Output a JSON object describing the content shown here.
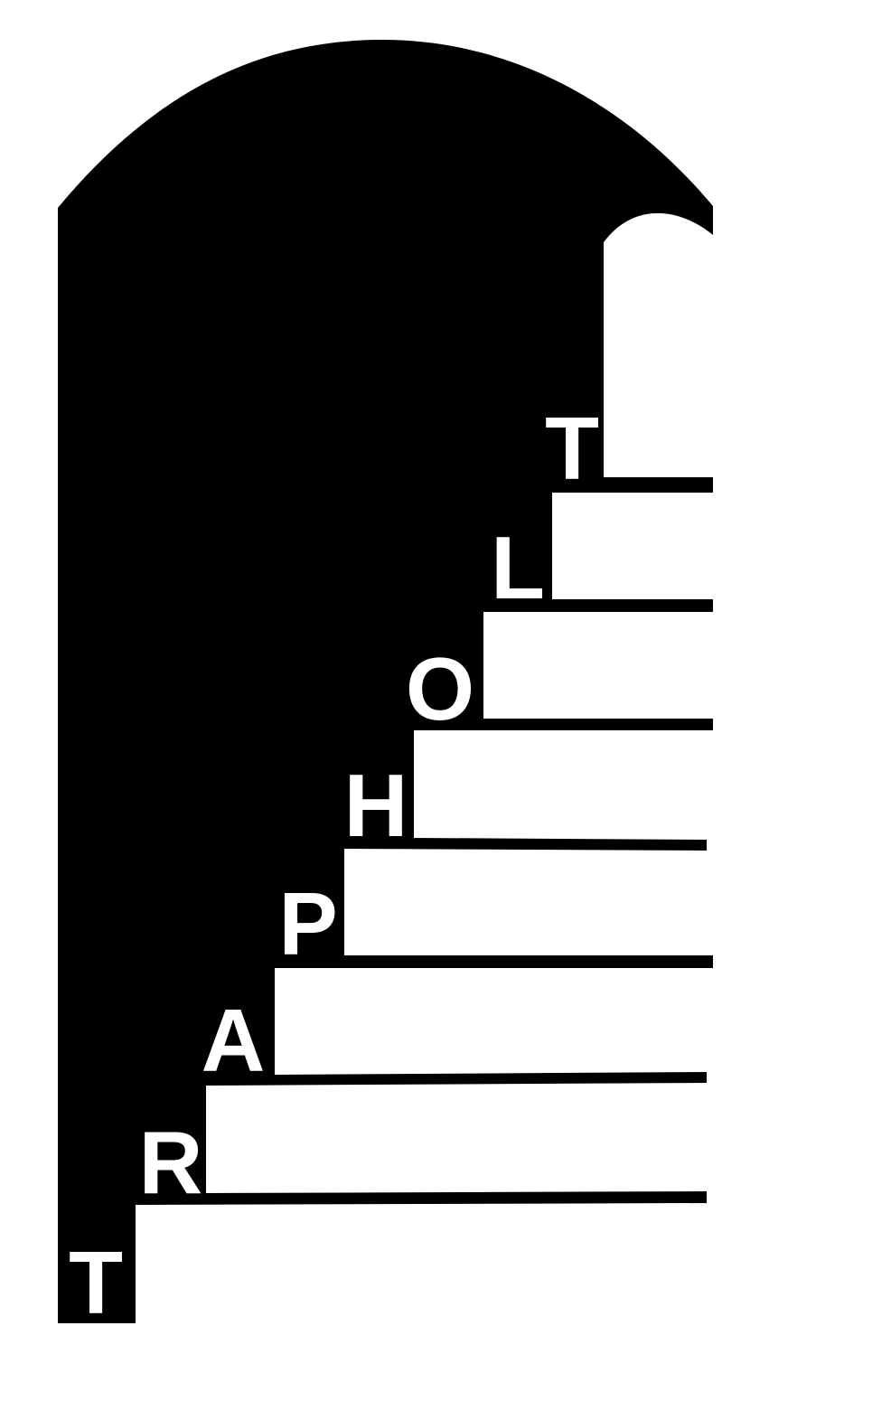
{
  "logo": {
    "letters": [
      "T",
      "R",
      "A",
      "P",
      "H",
      "O",
      "L",
      "T"
    ],
    "shape_color": "#000000",
    "step_color": "#ffffff",
    "letter_color": "#ffffff",
    "background": "#ffffff"
  }
}
